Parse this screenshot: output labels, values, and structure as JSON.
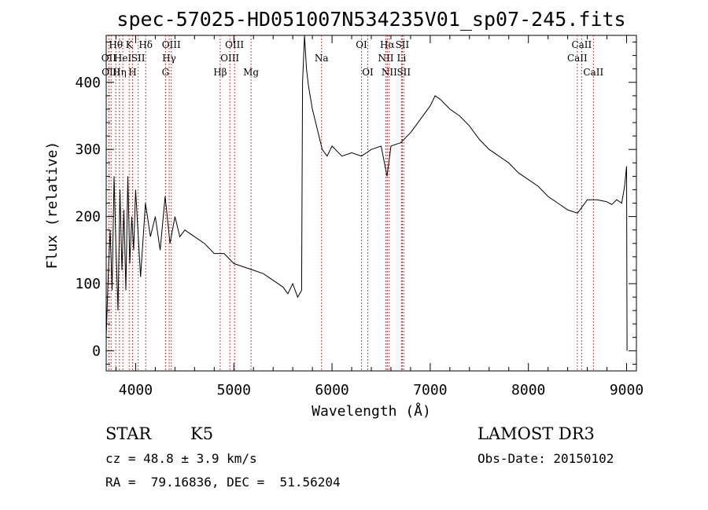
{
  "chart_data": {
    "type": "line",
    "title": "spec-57025-HD051007N534235V01_sp07-245.fits",
    "xlabel": "Wavelength (Å)",
    "ylabel": "Flux (relative)",
    "xlim": [
      3700,
      9100
    ],
    "ylim": [
      -30,
      470
    ],
    "xticks": [
      4000,
      5000,
      6000,
      7000,
      8000,
      9000
    ],
    "yticks": [
      0,
      100,
      200,
      300,
      400
    ],
    "grid": false,
    "series": [
      {
        "x": [
          3700,
          3720,
          3740,
          3760,
          3780,
          3800,
          3820,
          3840,
          3860,
          3880,
          3900,
          3920,
          3940,
          3960,
          3980,
          4000,
          4050,
          4100,
          4150,
          4200,
          4250,
          4300,
          4350,
          4400,
          4450,
          4500,
          4600,
          4700,
          4800,
          4900,
          5000,
          5100,
          5200,
          5300,
          5400,
          5500,
          5550,
          5600,
          5650,
          5690,
          5700,
          5720,
          5740,
          5760,
          5800,
          5850,
          5900,
          5950,
          6000,
          6100,
          6200,
          6300,
          6400,
          6500,
          6560,
          6600,
          6700,
          6800,
          6900,
          7000,
          7050,
          7100,
          7200,
          7300,
          7400,
          7500,
          7600,
          7700,
          7800,
          7900,
          8000,
          8100,
          8200,
          8300,
          8400,
          8500,
          8600,
          8700,
          8800,
          8850,
          8900,
          8950,
          8980,
          9000,
          9005
        ],
        "y": [
          20,
          110,
          180,
          90,
          260,
          150,
          60,
          240,
          120,
          210,
          90,
          260,
          130,
          200,
          150,
          240,
          110,
          220,
          170,
          200,
          150,
          230,
          160,
          200,
          170,
          180,
          170,
          160,
          145,
          145,
          130,
          125,
          120,
          115,
          105,
          95,
          85,
          100,
          80,
          90,
          400,
          470,
          420,
          395,
          360,
          330,
          300,
          290,
          305,
          290,
          295,
          290,
          300,
          305,
          260,
          305,
          310,
          325,
          345,
          365,
          380,
          375,
          360,
          350,
          335,
          315,
          300,
          290,
          280,
          265,
          255,
          245,
          230,
          220,
          210,
          205,
          225,
          225,
          222,
          218,
          225,
          220,
          245,
          275,
          0
        ]
      }
    ],
    "spectral_lines": [
      {
        "wavelength": 3727,
        "labels": [
          "OII"
        ],
        "row": 2
      },
      {
        "wavelength": 3750,
        "labels": [
          "OIII"
        ],
        "row": 3
      },
      {
        "wavelength": 3798,
        "labels": [
          "Hθ"
        ],
        "row": 1
      },
      {
        "wavelength": 3835,
        "labels": [
          "Hη"
        ],
        "row": 3
      },
      {
        "wavelength": 3869,
        "labels": [
          "HeI"
        ],
        "row": 2
      },
      {
        "wavelength": 3934,
        "labels": [
          "K"
        ],
        "row": 1
      },
      {
        "wavelength": 3968,
        "labels": [
          "H"
        ],
        "row": 3
      },
      {
        "wavelength": 4026,
        "labels": [
          "SII"
        ],
        "row": 2
      },
      {
        "wavelength": 4102,
        "labels": [
          "Hδ"
        ],
        "row": 1
      },
      {
        "wavelength": 4304,
        "labels": [
          "G"
        ],
        "row": 3
      },
      {
        "wavelength": 4341,
        "labels": [
          "Hγ"
        ],
        "row": 2
      },
      {
        "wavelength": 4363,
        "labels": [
          "OIII"
        ],
        "row": 1
      },
      {
        "wavelength": 4861,
        "labels": [
          "Hβ"
        ],
        "row": 3
      },
      {
        "wavelength": 4959,
        "labels": [
          "OIII"
        ],
        "row": 2
      },
      {
        "wavelength": 5007,
        "labels": [
          "OIII"
        ],
        "row": 1
      },
      {
        "wavelength": 5175,
        "labels": [
          "Mg"
        ],
        "row": 3
      },
      {
        "wavelength": 5893,
        "labels": [
          "Na"
        ],
        "row": 2
      },
      {
        "wavelength": 6300,
        "labels": [
          "OI"
        ],
        "row": 1
      },
      {
        "wavelength": 6364,
        "labels": [
          "OI"
        ],
        "row": 3
      },
      {
        "wavelength": 6548,
        "labels": [
          "NII"
        ],
        "row": 2
      },
      {
        "wavelength": 6563,
        "labels": [
          "Hα"
        ],
        "row": 1
      },
      {
        "wavelength": 6583,
        "labels": [
          "NII"
        ],
        "row": 3
      },
      {
        "wavelength": 6708,
        "labels": [
          "Li"
        ],
        "row": 2
      },
      {
        "wavelength": 6716,
        "labels": [
          "SII"
        ],
        "row": 1
      },
      {
        "wavelength": 6731,
        "labels": [
          "SII"
        ],
        "row": 3
      },
      {
        "wavelength": 8498,
        "labels": [
          "CaII"
        ],
        "row": 2
      },
      {
        "wavelength": 8542,
        "labels": [
          "CaII"
        ],
        "row": 1
      },
      {
        "wavelength": 8662,
        "labels": [
          "CaII"
        ],
        "row": 3
      }
    ],
    "line_color": "#000000",
    "marker_color": "#c00000"
  },
  "info": {
    "object_class": "STAR",
    "subclass": "K5",
    "survey": "LAMOST DR3",
    "cz": "cz = 48.8 ± 3.9 km/s",
    "obs_date": "Obs-Date: 20150102",
    "coords": "RA =  79.16836, DEC =  51.56204"
  }
}
